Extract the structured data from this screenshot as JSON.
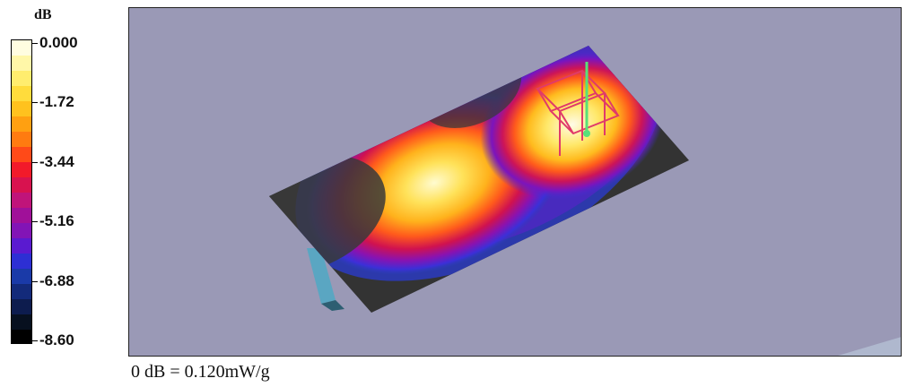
{
  "legend": {
    "unit": "dB",
    "ticks": [
      "0.000",
      "-1.72",
      "-3.44",
      "-5.16",
      "-6.88",
      "-8.60"
    ],
    "colors": [
      "#fffde0",
      "#fff7a8",
      "#ffed6e",
      "#ffdc3c",
      "#ffc21e",
      "#ffa011",
      "#ff7b10",
      "#ff4a18",
      "#f21a2a",
      "#d8124f",
      "#c0147a",
      "#a01099",
      "#8214b6",
      "#5a1ad0",
      "#2d2fd4",
      "#1a3aa8",
      "#132a7a",
      "#0d1c4e",
      "#07101f",
      "#000000"
    ]
  },
  "scene": {
    "background_color": "#9a99b6",
    "peak_colors": {
      "hot": "#fffbd0",
      "warm": "#ffd84a",
      "mid": "#ff6b1a",
      "cool": "#c3147e",
      "cold": "#4b22cc",
      "outer": "#3a3a3a"
    }
  },
  "footer": {
    "note": "0 dB = 0.120mW/g"
  }
}
